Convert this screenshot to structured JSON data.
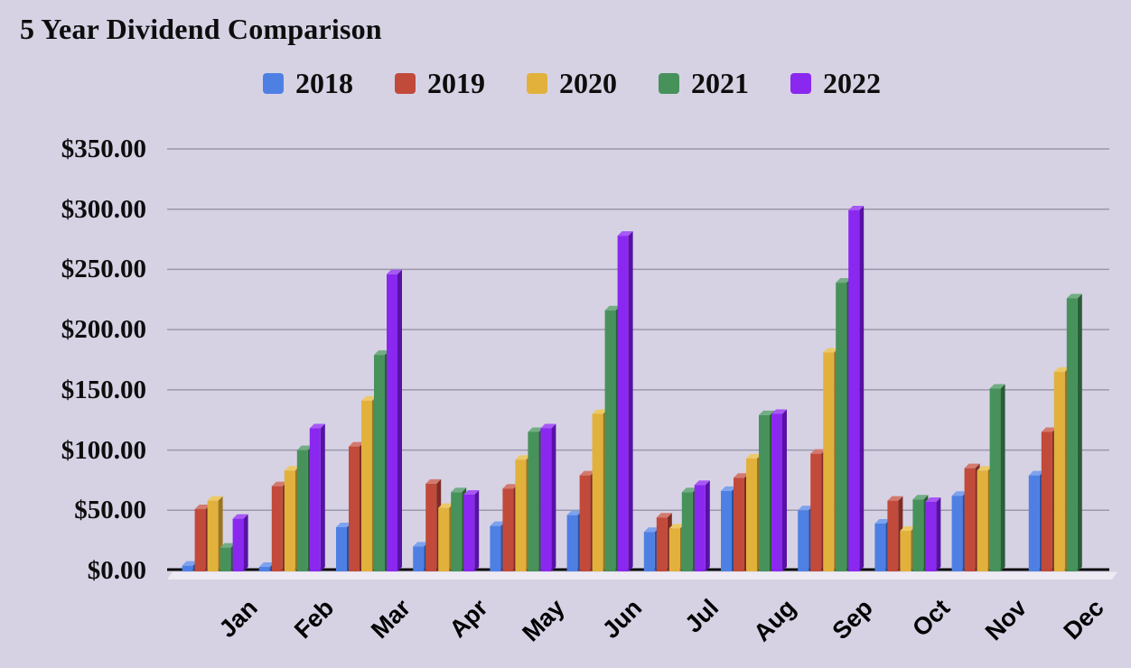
{
  "page": {
    "background_color": "#d6d2e4",
    "gridline_color": "#9c98ab",
    "axis_line_color": "#0a0a0a",
    "floor_color": "#edeaf3",
    "text_color": "#0d0d0d"
  },
  "chart_data": {
    "type": "bar",
    "bar_style": "3d",
    "title": "5 Year Dividend Comparison",
    "xlabel": "",
    "ylabel": "",
    "grid": true,
    "legend_position": "top",
    "ylim": [
      0,
      350
    ],
    "y_step": 50,
    "y_ticks": [
      {
        "value": 350,
        "label": "$350.00"
      },
      {
        "value": 300,
        "label": "$300.00"
      },
      {
        "value": 250,
        "label": "$250.00"
      },
      {
        "value": 200,
        "label": "$200.00"
      },
      {
        "value": 150,
        "label": "$150.00"
      },
      {
        "value": 100,
        "label": "$100.00"
      },
      {
        "value": 50,
        "label": "$50.00"
      },
      {
        "value": 0,
        "label": "$0.00"
      }
    ],
    "categories": [
      "Jan",
      "Feb",
      "Mar",
      "Apr",
      "May",
      "Jun",
      "Jul",
      "Aug",
      "Sep",
      "Oct",
      "Nov",
      "Dec"
    ],
    "series": [
      {
        "name": "2018",
        "color": "#4e80e4",
        "side_color": "#2c509c",
        "top_color": "#7da2ee",
        "values": [
          4,
          3,
          36,
          20,
          37,
          46,
          32,
          66,
          50,
          39,
          62,
          79
        ]
      },
      {
        "name": "2019",
        "color": "#c14a3b",
        "side_color": "#7d2b23",
        "top_color": "#d37a6e",
        "values": [
          51,
          70,
          103,
          72,
          68,
          79,
          44,
          77,
          97,
          58,
          85,
          115
        ]
      },
      {
        "name": "2020",
        "color": "#e2b13c",
        "side_color": "#9b7421",
        "top_color": "#ecc968",
        "values": [
          58,
          83,
          141,
          52,
          92,
          130,
          35,
          93,
          181,
          33,
          83,
          165
        ]
      },
      {
        "name": "2021",
        "color": "#47925b",
        "side_color": "#2b5d38",
        "top_color": "#72ad83",
        "values": [
          19,
          100,
          179,
          65,
          115,
          216,
          65,
          129,
          239,
          59,
          151,
          226
        ]
      },
      {
        "name": "2022",
        "color": "#8a28f0",
        "side_color": "#5712a4",
        "top_color": "#a758f5",
        "values": [
          43,
          118,
          246,
          63,
          118,
          278,
          71,
          130,
          299,
          57,
          null,
          null
        ]
      }
    ],
    "notes": "2022 series has no bars for Nov and Dec (null values)."
  }
}
